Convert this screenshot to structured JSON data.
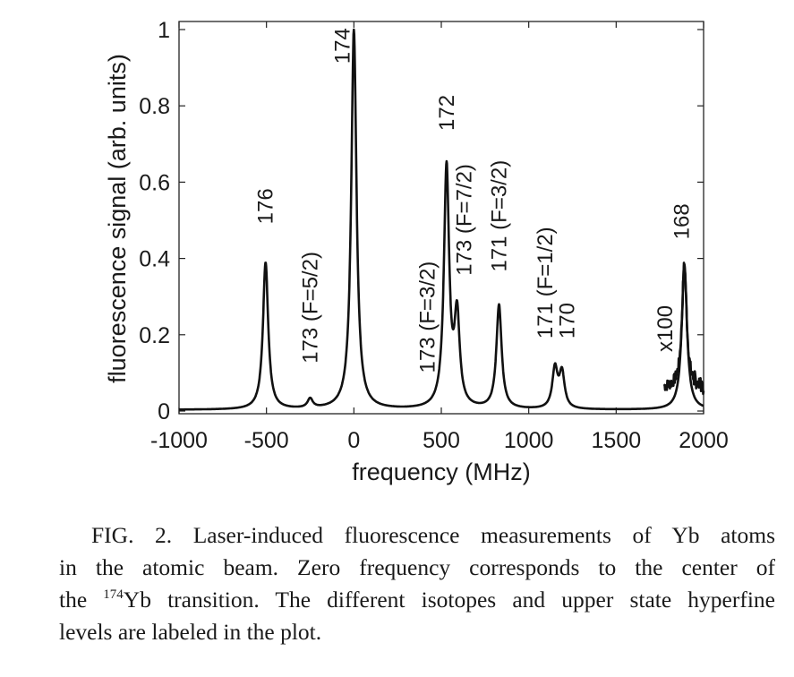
{
  "chart_data": {
    "type": "line",
    "xlabel": "frequency (MHz)",
    "ylabel": "fluorescence signal (arb. units)",
    "xlim": [
      -1000,
      2000
    ],
    "ylim": [
      0,
      1
    ],
    "xticks": [
      "-1000",
      "-500",
      "0",
      "500",
      "1000",
      "1500",
      "2000"
    ],
    "yticks": [
      "0",
      "0.2",
      "0.4",
      "0.6",
      "0.8",
      "1"
    ],
    "grid": false,
    "legend": "none",
    "line_color": "#111111",
    "peaks": [
      {
        "x": -505,
        "y": 0.39
      },
      {
        "x": -250,
        "y": 0.035
      },
      {
        "x": 0,
        "y": 1.0
      },
      {
        "x": 485,
        "y": 0.08
      },
      {
        "x": 530,
        "y": 0.655
      },
      {
        "x": 590,
        "y": 0.29
      },
      {
        "x": 830,
        "y": 0.28
      },
      {
        "x": 1150,
        "y": 0.125
      },
      {
        "x": 1190,
        "y": 0.115
      },
      {
        "x": 1890,
        "y": 0.385
      }
    ],
    "annotations": [
      {
        "text": "176",
        "x": -505,
        "y": 0.49,
        "rotated": true
      },
      {
        "text": "173 (F=5/2)",
        "x": -250,
        "y": 0.125,
        "rotated": true
      },
      {
        "text": "174",
        "x": -65,
        "y": 0.91,
        "rotated": true
      },
      {
        "text": "173 (F=3/2)",
        "x": 420,
        "y": 0.1,
        "rotated": true
      },
      {
        "text": "172",
        "x": 530,
        "y": 0.735,
        "rotated": true
      },
      {
        "text": "173 (F=7/2)",
        "x": 630,
        "y": 0.355,
        "rotated": true
      },
      {
        "text": "171 (F=3/2)",
        "x": 830,
        "y": 0.365,
        "rotated": true
      },
      {
        "text": "171 (F=1/2)",
        "x": 1095,
        "y": 0.19,
        "rotated": true
      },
      {
        "text": "170",
        "x": 1220,
        "y": 0.19,
        "rotated": true
      },
      {
        "text": "x100",
        "x": 1780,
        "y": 0.155,
        "rotated": true
      },
      {
        "text": "168",
        "x": 1875,
        "y": 0.45,
        "rotated": true
      }
    ]
  },
  "caption": {
    "lines": [
      "FIG. 2.  Laser-induced fluorescence measurements of Yb atoms",
      "in the atomic beam. Zero frequency corresponds to the center of"
    ],
    "line3_pre": "the ",
    "line3_sup": "174",
    "line3_post": "Yb transition. The different isotopes and upper state hyperfine",
    "line4": "levels are labeled in the plot."
  }
}
